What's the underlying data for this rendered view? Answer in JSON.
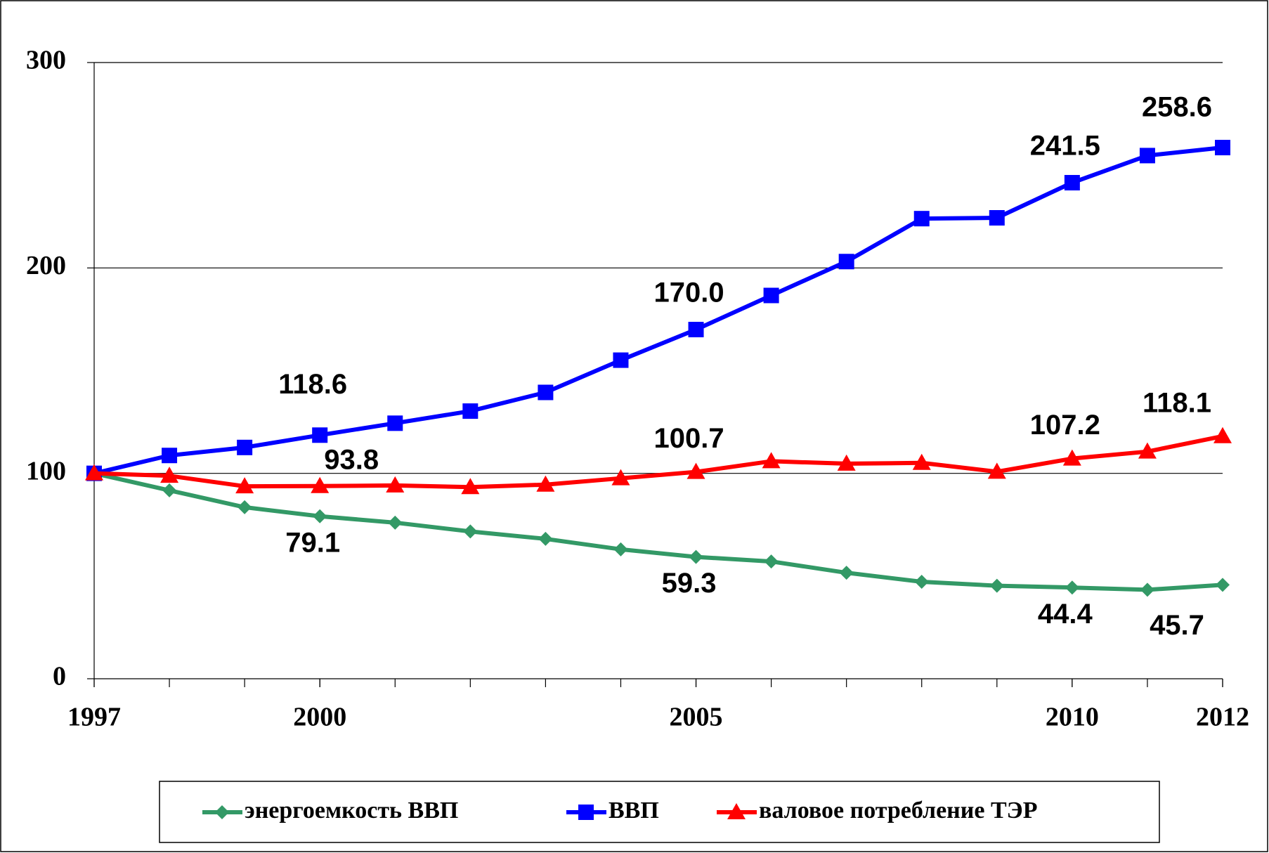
{
  "chart_data": {
    "type": "line",
    "x": [
      1997,
      1998,
      1999,
      2000,
      2001,
      2002,
      2003,
      2004,
      2005,
      2006,
      2007,
      2008,
      2009,
      2010,
      2011,
      2012
    ],
    "xlim": [
      1997,
      2012
    ],
    "xticks": [
      1997,
      2000,
      2005,
      2010,
      2012
    ],
    "ylim": [
      0,
      300
    ],
    "yticks": [
      0,
      100,
      200,
      300
    ],
    "grid": true,
    "legend": "bottom",
    "series": [
      {
        "name": "энергоемкость ВВП",
        "color": "#339966",
        "marker": "diamond",
        "values": [
          100,
          91.7,
          83.5,
          79.1,
          76.0,
          71.7,
          68.1,
          63.0,
          59.3,
          57.1,
          51.6,
          47.2,
          45.3,
          44.4,
          43.3,
          45.7
        ],
        "value_labels": [
          null,
          null,
          null,
          "79.1",
          null,
          null,
          null,
          null,
          "59.3",
          null,
          null,
          null,
          null,
          "44.4",
          null,
          "45.7"
        ]
      },
      {
        "name": "ВВП",
        "color": "#0000ff",
        "marker": "square",
        "values": [
          100,
          108.7,
          112.6,
          118.6,
          124.4,
          130.3,
          139.4,
          155.1,
          170.0,
          186.6,
          203.1,
          224.0,
          224.4,
          241.5,
          254.7,
          258.6
        ],
        "value_labels": [
          null,
          null,
          null,
          "118.6",
          null,
          null,
          null,
          null,
          "170.0",
          null,
          null,
          null,
          null,
          "241.5",
          null,
          "258.6"
        ]
      },
      {
        "name": "валовое потребление ТЭР",
        "color": "#ff0000",
        "marker": "triangle",
        "values": [
          100,
          98.8,
          93.7,
          93.8,
          94.1,
          93.3,
          94.5,
          97.6,
          100.7,
          105.9,
          104.7,
          105.1,
          100.8,
          107.2,
          110.6,
          118.1
        ],
        "value_labels": [
          null,
          null,
          null,
          "93.8",
          null,
          null,
          null,
          null,
          "100.7",
          null,
          null,
          null,
          null,
          "107.2",
          null,
          "118.1"
        ]
      }
    ]
  }
}
